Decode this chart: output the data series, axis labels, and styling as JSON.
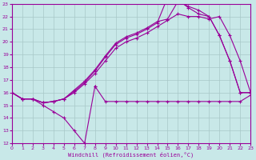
{
  "background_color": "#c8e8e8",
  "grid_color": "#a8c8c8",
  "line_color": "#990099",
  "xlim": [
    0,
    23
  ],
  "ylim": [
    12,
    23
  ],
  "xlabel": "Windchill (Refroidissement éolien,°C)",
  "yticks": [
    12,
    13,
    14,
    15,
    16,
    17,
    18,
    19,
    20,
    21,
    22,
    23
  ],
  "xticks": [
    0,
    1,
    2,
    3,
    4,
    5,
    6,
    7,
    8,
    9,
    10,
    11,
    12,
    13,
    14,
    15,
    16,
    17,
    18,
    19,
    20,
    21,
    22,
    23
  ],
  "zigzag_x": [
    0,
    1,
    2,
    3,
    4,
    5,
    6,
    7,
    8
  ],
  "zigzag_y": [
    16.0,
    15.5,
    15.5,
    15.0,
    14.5,
    14.0,
    13.0,
    12.0,
    16.5
  ],
  "flat_x": [
    8,
    9,
    10,
    11,
    12,
    13,
    14,
    15,
    16,
    17,
    18,
    19,
    20,
    21,
    22,
    23
  ],
  "flat_y": [
    16.5,
    15.3,
    15.3,
    15.3,
    15.3,
    15.3,
    15.3,
    15.3,
    15.3,
    15.3,
    15.3,
    15.3,
    15.3,
    15.3,
    15.3,
    15.8
  ],
  "line_a_x": [
    0,
    1,
    2,
    3,
    4,
    5,
    6,
    7,
    8,
    9,
    10,
    11,
    12,
    13,
    14,
    15,
    16,
    17,
    18,
    19,
    20,
    21,
    22,
    23
  ],
  "line_a_y": [
    16.0,
    15.5,
    15.5,
    15.2,
    15.3,
    15.5,
    16.0,
    16.7,
    17.5,
    18.5,
    19.5,
    20.0,
    20.3,
    20.7,
    21.2,
    21.7,
    22.2,
    22.0,
    22.0,
    21.8,
    22.0,
    20.5,
    18.5,
    16.0
  ],
  "line_b_x": [
    0,
    1,
    2,
    3,
    4,
    5,
    6,
    7,
    8,
    9,
    10,
    11,
    12,
    13,
    14,
    15,
    16,
    17,
    18,
    19,
    20,
    21,
    22,
    23
  ],
  "line_b_y": [
    16.0,
    15.5,
    15.5,
    15.2,
    15.3,
    15.5,
    16.1,
    16.8,
    17.7,
    18.8,
    19.8,
    20.3,
    20.6,
    21.0,
    21.5,
    23.5,
    23.3,
    22.7,
    22.2,
    22.0,
    20.5,
    18.5,
    16.0,
    16.0
  ],
  "line_c_x": [
    0,
    1,
    2,
    3,
    4,
    5,
    6,
    7,
    8,
    9,
    10,
    11,
    12,
    13,
    14,
    15,
    16,
    17,
    18,
    19,
    20,
    21,
    22,
    23
  ],
  "line_c_y": [
    16.0,
    15.5,
    15.5,
    15.2,
    15.3,
    15.5,
    16.2,
    16.9,
    17.8,
    18.9,
    19.9,
    20.4,
    20.7,
    21.1,
    21.6,
    21.8,
    23.2,
    22.8,
    22.5,
    22.0,
    20.5,
    18.5,
    16.0,
    16.0
  ]
}
